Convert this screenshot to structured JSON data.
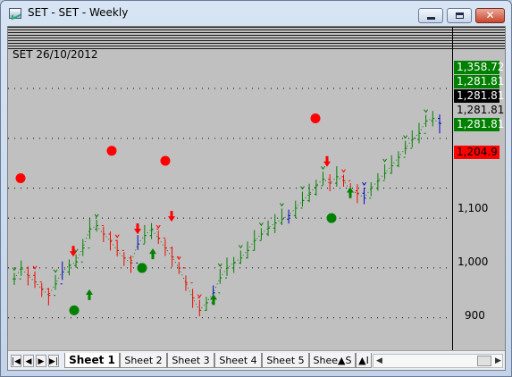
{
  "window": {
    "title": "SET - SET - Weekly",
    "icon": "chart-window-icon",
    "controls": {
      "minimize": "minimize-icon",
      "maximize": "maximize-icon",
      "close": "close-icon",
      "close_glyph": "✕"
    }
  },
  "chart": {
    "label": "SET 26/10/2012",
    "price_tags": [
      {
        "text": "1,358.72",
        "bg": "#008000",
        "fg": "#ffffff"
      },
      {
        "text": "1,281.81",
        "bg": "#008000",
        "fg": "#ffffff"
      },
      {
        "text": "1,281.81",
        "bg": "#000000",
        "fg": "#ffffff"
      },
      {
        "text": "1,281.81",
        "bg": "#c0c0c0",
        "fg": "#000000"
      },
      {
        "text": "1,281.81",
        "bg": "#008000",
        "fg": "#ffffff"
      },
      {
        "text": "1,204.9",
        "bg": "#ff0000",
        "fg": "#000000"
      }
    ],
    "y_ticks": [
      "1,100",
      "1,000",
      "900"
    ],
    "colors": {
      "up": "#008000",
      "down": "#ff0000",
      "neutral": "#0000cc",
      "background": "#c0c0c0"
    }
  },
  "chart_data": {
    "type": "line",
    "title": "SET 26/10/2012",
    "ylim": [
      835,
      1430
    ],
    "yticks": [
      900,
      1000,
      1100
    ],
    "grid": true,
    "series": [
      {
        "values": [
          978,
          1000,
          985,
          972,
          958,
          945,
          968,
          992,
          1005,
          1012,
          1040,
          1078,
          1085,
          1068,
          1055,
          1035,
          1020,
          1010,
          1048,
          1065,
          1078,
          1060,
          1040,
          1022,
          1000,
          970,
          940,
          915,
          930,
          950,
          980,
          1000,
          1010,
          1020,
          1035,
          1055,
          1068,
          1080,
          1090,
          1098,
          1105,
          1120,
          1135,
          1148,
          1165,
          1178,
          1170,
          1183,
          1175,
          1155,
          1150,
          1140,
          1160,
          1175,
          1190,
          1205,
          1222,
          1240,
          1258,
          1270,
          1295,
          1300,
          1290
        ]
      }
    ],
    "markers": [
      {
        "type": "sell-dot",
        "y": 1180
      },
      {
        "type": "buy-dot",
        "y": 915
      },
      {
        "type": "sell-dot",
        "y": 1235
      },
      {
        "type": "buy-dot",
        "y": 1000
      },
      {
        "type": "sell-dot",
        "y": 1215
      },
      {
        "type": "sell-dot",
        "y": 1300
      },
      {
        "type": "buy-dot",
        "y": 1100
      }
    ],
    "arrows": [
      {
        "type": "down",
        "y": 1030
      },
      {
        "type": "up",
        "y": 950
      },
      {
        "type": "down",
        "y": 1075
      },
      {
        "type": "up",
        "y": 1032
      },
      {
        "type": "down",
        "y": 1100
      },
      {
        "type": "up",
        "y": 940
      },
      {
        "type": "down",
        "y": 1210
      },
      {
        "type": "up",
        "y": 1155
      }
    ]
  },
  "sheets": {
    "nav_buttons": [
      "|◀",
      "◀",
      "▶",
      "▶|"
    ],
    "tabs": [
      {
        "label": "Sheet 1",
        "active": true
      },
      {
        "label": "Sheet 2",
        "active": false
      },
      {
        "label": "Sheet 3",
        "active": false
      },
      {
        "label": "Sheet 4",
        "active": false
      },
      {
        "label": "Sheet 5",
        "active": false
      },
      {
        "label": "Shee▲S",
        "active": false
      },
      {
        "label": "▲I",
        "active": false
      }
    ],
    "scroll_left": "◀",
    "scroll_right": "▶"
  }
}
